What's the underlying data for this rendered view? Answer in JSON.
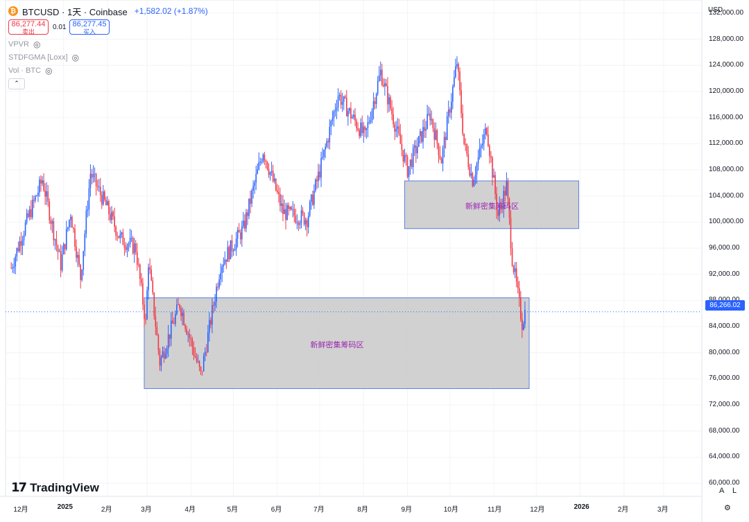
{
  "header": {
    "symbol": "BTCUSD · 1天 · Coinbase",
    "coin_icon": "bitcoin-icon",
    "change": "+1,582.02 (+1.87%)",
    "sell_price": "86,277.44",
    "sell_label": "卖出",
    "spread": "0.01",
    "buy_price": "86,277.45",
    "buy_label": "买入"
  },
  "indicators": [
    {
      "name": "VPVR",
      "icon": "eye-off-icon"
    },
    {
      "name": "STDFGMA [Loxx]",
      "icon": "eye-off-icon"
    },
    {
      "name": "Vol · BTC",
      "icon": "eye-off-icon"
    }
  ],
  "collapse_icon": "chevron-up-icon",
  "currency": "USD",
  "current_price_label": "86,266.02",
  "brand": "TradingView",
  "controls": {
    "auto": "A",
    "log": "L",
    "settings_icon": "gear-icon"
  },
  "colors": {
    "up": "#2962ff",
    "down": "#f23645",
    "zone_fill": "#cccccc",
    "zone_border": "#5b7fde",
    "zone_text": "#9c27b0"
  },
  "chart_data": {
    "type": "candlestick",
    "interval": "1天",
    "ylim": [
      58000,
      134000
    ],
    "ytick_labels": [
      "132,000.00",
      "128,000.00",
      "124,000.00",
      "120,000.00",
      "116,000.00",
      "112,000.00",
      "108,000.00",
      "104,000.00",
      "100,000.00",
      "96,000.00",
      "92,000.00",
      "88,000.00",
      "84,000.00",
      "80,000.00",
      "76,000.00",
      "72,000.00",
      "68,000.00",
      "64,000.00",
      "60,000.00"
    ],
    "xtick_labels": [
      "12月",
      "2025",
      "2月",
      "3月",
      "4月",
      "5月",
      "6月",
      "7月",
      "8月",
      "9月",
      "10月",
      "11月",
      "12月",
      "2026",
      "2月",
      "3月"
    ],
    "current_price": 86266.02,
    "zones": [
      {
        "label": "新鲜密集筹码区",
        "start": "2025-02-27",
        "end": "2025-11-26",
        "low": 74500,
        "high": 88400
      },
      {
        "label": "新鲜密集筹码区",
        "start": "2025-08-30",
        "end": "2025-12-31",
        "low": 99000,
        "high": 106300
      }
    ],
    "series": [
      {
        "date": "2024-11-25",
        "close": 93000
      },
      {
        "date": "2024-12-05",
        "close": 99500
      },
      {
        "date": "2024-12-17",
        "close": 106500
      },
      {
        "date": "2024-12-30",
        "close": 93500
      },
      {
        "date": "2025-01-06",
        "close": 101500
      },
      {
        "date": "2025-01-13",
        "close": 91500
      },
      {
        "date": "2025-01-20",
        "close": 107500
      },
      {
        "date": "2025-01-31",
        "close": 102500
      },
      {
        "date": "2025-02-10",
        "close": 97500
      },
      {
        "date": "2025-02-21",
        "close": 96000
      },
      {
        "date": "2025-02-28",
        "close": 84500
      },
      {
        "date": "2025-03-02",
        "close": 94000
      },
      {
        "date": "2025-03-10",
        "close": 78500
      },
      {
        "date": "2025-03-24",
        "close": 87500
      },
      {
        "date": "2025-04-08",
        "close": 76500
      },
      {
        "date": "2025-04-22",
        "close": 93500
      },
      {
        "date": "2025-05-08",
        "close": 99000
      },
      {
        "date": "2025-05-22",
        "close": 111000
      },
      {
        "date": "2025-06-05",
        "close": 101500
      },
      {
        "date": "2025-06-22",
        "close": 100500
      },
      {
        "date": "2025-07-03",
        "close": 109500
      },
      {
        "date": "2025-07-14",
        "close": 119500
      },
      {
        "date": "2025-08-02",
        "close": 113000
      },
      {
        "date": "2025-08-13",
        "close": 123000
      },
      {
        "date": "2025-09-01",
        "close": 108000
      },
      {
        "date": "2025-09-17",
        "close": 116500
      },
      {
        "date": "2025-09-25",
        "close": 109500
      },
      {
        "date": "2025-10-06",
        "close": 124500
      },
      {
        "date": "2025-10-11",
        "close": 112000
      },
      {
        "date": "2025-10-17",
        "close": 106500
      },
      {
        "date": "2025-10-27",
        "close": 114500
      },
      {
        "date": "2025-11-04",
        "close": 101000
      },
      {
        "date": "2025-11-10",
        "close": 105500
      },
      {
        "date": "2025-11-14",
        "close": 94500
      },
      {
        "date": "2025-11-21",
        "close": 84500
      },
      {
        "date": "2025-11-23",
        "close": 86266
      }
    ]
  }
}
